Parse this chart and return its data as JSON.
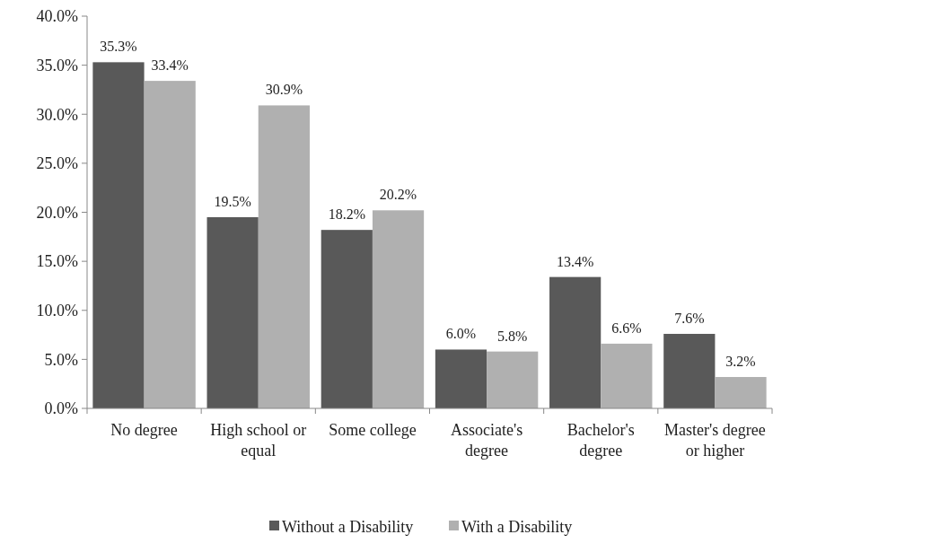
{
  "chart_data": {
    "type": "bar",
    "categories": [
      "No degree",
      "High school or equal",
      "Some college",
      "Associate's degree",
      "Bachelor's degree",
      "Master's degree or higher"
    ],
    "series": [
      {
        "name": "Without a Disability",
        "color": "#595959",
        "values": [
          35.3,
          19.5,
          18.2,
          6.0,
          13.4,
          7.6
        ],
        "value_labels": [
          "35.3%",
          "19.5%",
          "18.2%",
          "6.0%",
          "13.4%",
          "7.6%"
        ]
      },
      {
        "name": "With a Disability",
        "color": "#b0b0b0",
        "values": [
          33.4,
          30.9,
          20.2,
          5.8,
          6.6,
          3.2
        ],
        "value_labels": [
          "33.4%",
          "30.9%",
          "20.2%",
          "5.8%",
          "6.6%",
          "3.2%"
        ]
      }
    ],
    "ylim": [
      0,
      40
    ],
    "yticks": [
      {
        "value": 0,
        "label": "0.0%"
      },
      {
        "value": 5,
        "label": "5.0%"
      },
      {
        "value": 10,
        "label": "10.0%"
      },
      {
        "value": 15,
        "label": "15.0%"
      },
      {
        "value": 20,
        "label": "20.0%"
      },
      {
        "value": 25,
        "label": "25.0%"
      },
      {
        "value": 30,
        "label": "30.0%"
      },
      {
        "value": 35,
        "label": "35.0%"
      },
      {
        "value": 40,
        "label": "40.0%"
      }
    ],
    "grid": false,
    "legend": "bottom"
  }
}
